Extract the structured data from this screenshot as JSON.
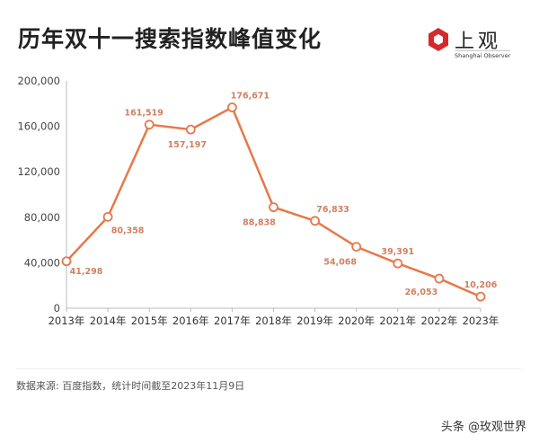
{
  "header": {
    "title": "历年双十一搜索指数峰值变化"
  },
  "logo": {
    "cn": "上观",
    "en": "Shanghai Observer"
  },
  "footer": {
    "source": "数据来源: 百度指数，统计时间截至2023年11月9日",
    "watermark": "头条 @玫观世界"
  },
  "colors": {
    "line": "#e8784a",
    "label": "#d08060",
    "axis": "#bbbbbb"
  },
  "chart_data": {
    "type": "line",
    "title": "历年双十一搜索指数峰值变化",
    "xlabel": "",
    "ylabel": "",
    "categories": [
      "2013年",
      "2014年",
      "2015年",
      "2016年",
      "2017年",
      "2018年",
      "2019年",
      "2020年",
      "2021年",
      "2022年",
      "2023年"
    ],
    "values": [
      41298,
      80358,
      161519,
      157197,
      176671,
      88838,
      76833,
      54068,
      39391,
      26053,
      10206
    ],
    "value_labels": [
      "41,298",
      "80,358",
      "161,519",
      "157,197",
      "176,671",
      "88,838",
      "76,833",
      "54,068",
      "39,391",
      "26,053",
      "10,206"
    ],
    "ylim": [
      0,
      200000
    ],
    "yticks": [
      0,
      40000,
      80000,
      120000,
      160000,
      200000
    ],
    "ytick_labels": [
      "0",
      "40,000",
      "80,000",
      "120,000",
      "160,000",
      "200,000"
    ],
    "grid": false,
    "legend": "none"
  }
}
